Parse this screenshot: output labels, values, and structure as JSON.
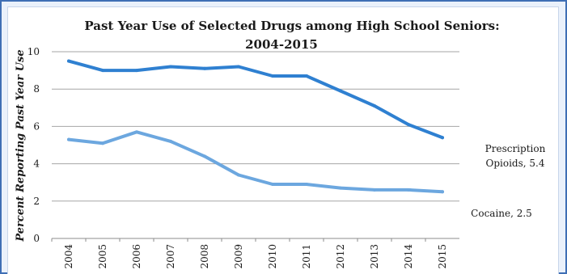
{
  "chart_data": {
    "type": "line",
    "title_line1": "Past Year Use of Selected Drugs among High School Seniors:",
    "title_line2": "2004-2015",
    "ylabel": "Percent Reporting Past Year Use",
    "xlabel": "",
    "ylim": [
      0,
      10
    ],
    "yticks": [
      "0",
      "2",
      "4",
      "6",
      "8",
      "10"
    ],
    "grid": true,
    "legend": "none",
    "x": [
      "2004",
      "2005",
      "2006",
      "2007",
      "2008",
      "2009",
      "2010",
      "2011",
      "2012",
      "2013",
      "2014",
      "2015"
    ],
    "series": [
      {
        "name": "Prescription Opioids",
        "color": "#2f80d1",
        "values": [
          9.5,
          9.0,
          9.0,
          9.2,
          9.1,
          9.2,
          8.7,
          8.7,
          7.9,
          7.1,
          6.1,
          5.4
        ],
        "label_line1": "Prescription",
        "label_line2": "Opioids, 5.4"
      },
      {
        "name": "Cocaine",
        "color": "#6ca7df",
        "values": [
          5.3,
          5.1,
          5.7,
          5.2,
          4.4,
          3.4,
          2.9,
          2.9,
          2.7,
          2.6,
          2.6,
          2.5
        ],
        "label_line1": "Cocaine, 2.5"
      }
    ]
  }
}
